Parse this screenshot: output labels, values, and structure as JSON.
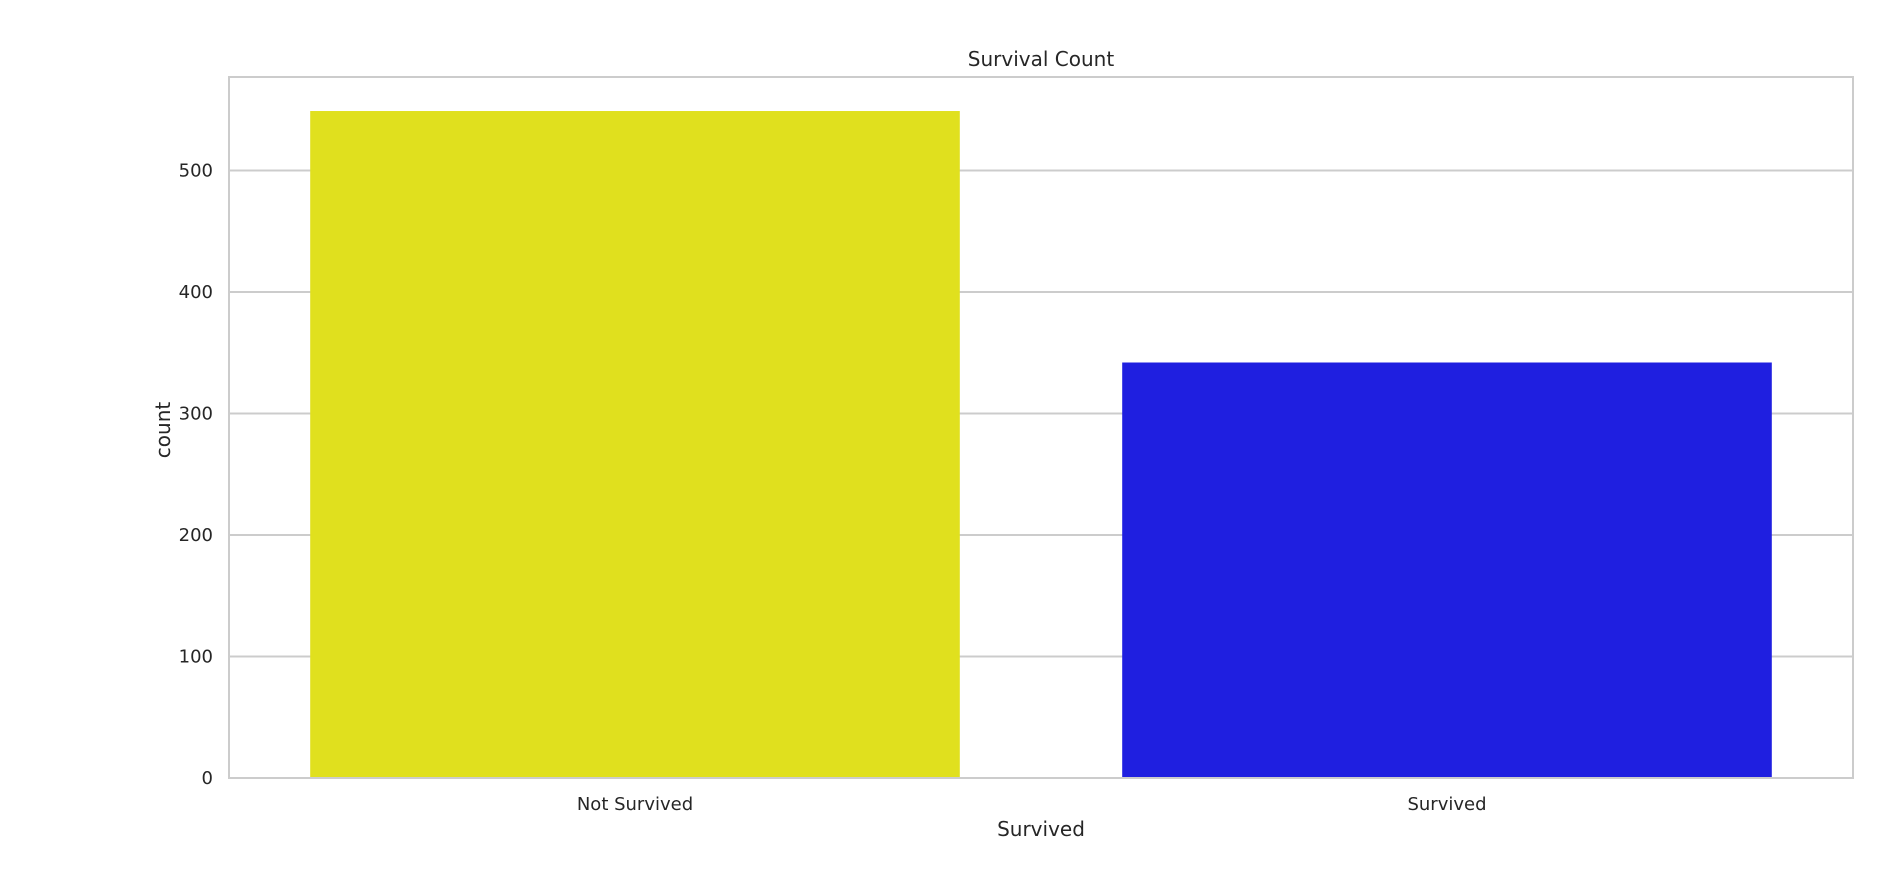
{
  "chart_data": {
    "type": "bar",
    "title": "Survival Count",
    "xlabel": "Survived",
    "ylabel": "count",
    "categories": [
      "Not Survived",
      "Survived"
    ],
    "values": [
      549,
      342
    ],
    "colors": [
      "#e0e01e",
      "#1f1fe0"
    ],
    "ylim": [
      0,
      577
    ],
    "yticks": [
      0,
      100,
      200,
      300,
      400,
      500
    ],
    "grid": true,
    "legend": "none"
  }
}
